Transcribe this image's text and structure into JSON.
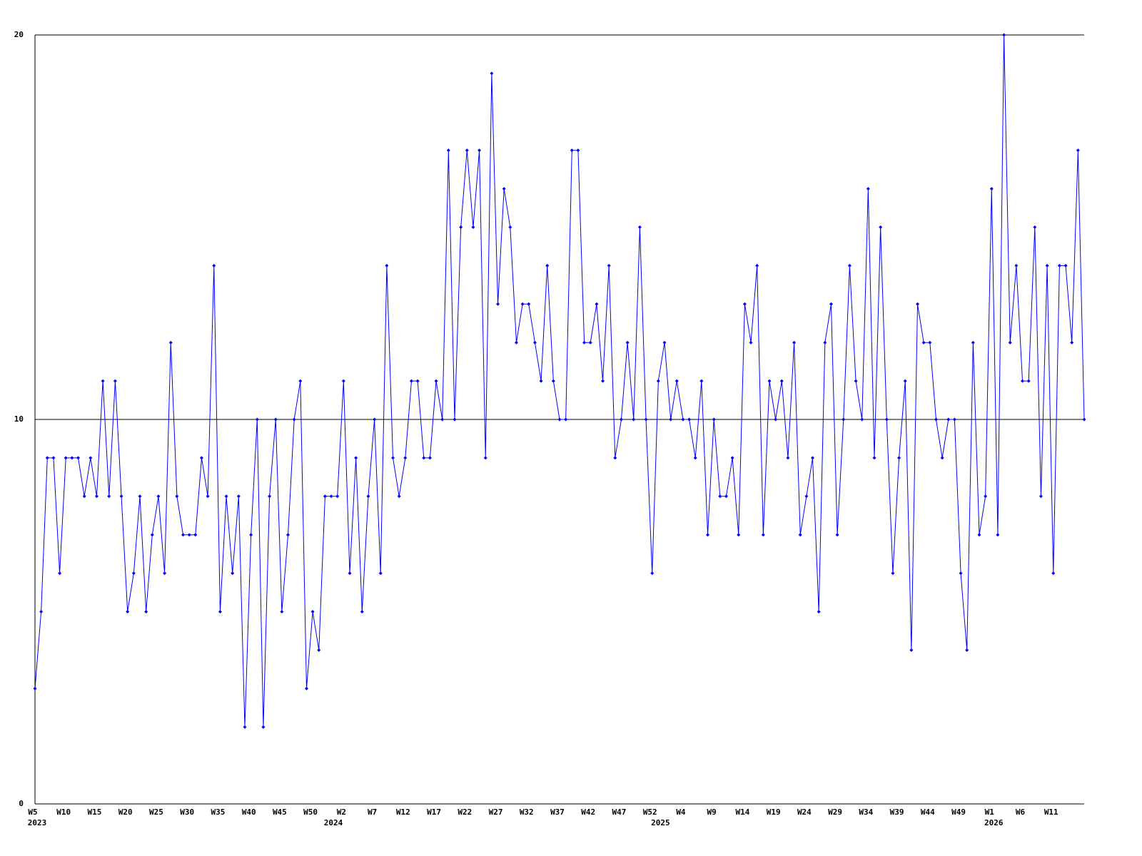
{
  "chart_data": {
    "type": "line",
    "color": "#0000ff",
    "ylim": [
      0,
      20
    ],
    "yticks": [
      0,
      10,
      20
    ],
    "grid": true,
    "categories": [
      "W5",
      null,
      null,
      null,
      null,
      "W10",
      null,
      null,
      null,
      null,
      "W15",
      null,
      null,
      null,
      null,
      "W20",
      null,
      null,
      null,
      null,
      "W25",
      null,
      null,
      null,
      null,
      "W30",
      null,
      null,
      null,
      null,
      "W35",
      null,
      null,
      null,
      null,
      "W40",
      null,
      null,
      null,
      null,
      "W45",
      null,
      null,
      null,
      null,
      "W50",
      null,
      null,
      null,
      null,
      "W2",
      null,
      null,
      null,
      null,
      "W7",
      null,
      null,
      null,
      null,
      "W12",
      null,
      null,
      null,
      null,
      "W17",
      null,
      null,
      null,
      null,
      "W22",
      null,
      null,
      null,
      null,
      "W27",
      null,
      null,
      null,
      null,
      "W32",
      null,
      null,
      null,
      null,
      "W37",
      null,
      null,
      null,
      null,
      "W42",
      null,
      null,
      null,
      null,
      "W47",
      null,
      null,
      null,
      null,
      "W52",
      null,
      null,
      null,
      null,
      "W4",
      null,
      null,
      null,
      null,
      "W9",
      null,
      null,
      null,
      null,
      "W14",
      null,
      null,
      null,
      null,
      "W19",
      null,
      null,
      null,
      null,
      "W24",
      null,
      null,
      null,
      null,
      "W29",
      null,
      null,
      null,
      null,
      "W34",
      null,
      null,
      null,
      null,
      "W39",
      null,
      null,
      null,
      null,
      "W44",
      null,
      null,
      null,
      null,
      "W49",
      null,
      null,
      null,
      null,
      "W1",
      null,
      null,
      null,
      null,
      "W6",
      null,
      null,
      null,
      null,
      "W11",
      null,
      null,
      null,
      null,
      null
    ],
    "category_years": [
      "2023",
      null,
      null,
      null,
      null,
      null,
      null,
      null,
      null,
      null,
      null,
      null,
      null,
      null,
      null,
      null,
      null,
      null,
      null,
      null,
      null,
      null,
      null,
      null,
      null,
      null,
      null,
      null,
      null,
      null,
      null,
      null,
      null,
      null,
      null,
      null,
      null,
      null,
      null,
      null,
      null,
      null,
      null,
      null,
      null,
      null,
      null,
      null,
      "2024",
      null,
      null,
      null,
      null,
      null,
      null,
      null,
      null,
      null,
      null,
      null,
      null,
      null,
      null,
      null,
      null,
      null,
      null,
      null,
      null,
      null,
      null,
      null,
      null,
      null,
      null,
      null,
      null,
      null,
      null,
      null,
      null,
      null,
      null,
      null,
      null,
      null,
      null,
      null,
      null,
      null,
      null,
      null,
      null,
      null,
      null,
      null,
      null,
      null,
      null,
      null,
      null,
      "2025",
      null,
      null,
      null,
      null,
      null,
      null,
      null,
      null,
      null,
      null,
      null,
      null,
      null,
      null,
      null,
      null,
      null,
      null,
      null,
      null,
      null,
      null,
      null,
      null,
      null,
      null,
      null,
      null,
      null,
      null,
      null,
      null,
      null,
      null,
      null,
      null,
      null,
      null,
      null,
      null,
      null,
      null,
      null,
      null,
      null,
      null,
      null,
      null,
      null,
      null,
      null,
      null,
      null,
      "2026",
      null,
      null,
      null,
      null,
      null,
      null,
      null,
      null,
      null,
      null,
      null,
      null,
      null,
      null,
      null,
      null
    ],
    "values": [
      3,
      5,
      9,
      9,
      6,
      9,
      9,
      9,
      8,
      9,
      8,
      11,
      8,
      11,
      8,
      5,
      6,
      8,
      5,
      7,
      8,
      6,
      12,
      8,
      7,
      7,
      7,
      9,
      8,
      14,
      5,
      8,
      6,
      8,
      2,
      7,
      10,
      2,
      8,
      10,
      5,
      7,
      10,
      11,
      3,
      5,
      4,
      8,
      8,
      8,
      11,
      6,
      9,
      5,
      8,
      10,
      6,
      14,
      9,
      8,
      9,
      11,
      11,
      9,
      9,
      11,
      10,
      17,
      10,
      15,
      17,
      15,
      17,
      9,
      19,
      13,
      16,
      15,
      12,
      13,
      13,
      12,
      11,
      14,
      11,
      10,
      10,
      17,
      17,
      12,
      12,
      13,
      11,
      14,
      9,
      10,
      12,
      10,
      15,
      10,
      6,
      11,
      12,
      10,
      11,
      10,
      10,
      9,
      11,
      7,
      10,
      8,
      8,
      9,
      7,
      13,
      12,
      14,
      7,
      11,
      10,
      11,
      9,
      12,
      7,
      8,
      9,
      5,
      12,
      13,
      7,
      10,
      14,
      11,
      10,
      16,
      9,
      15,
      10,
      6,
      9,
      11,
      4,
      13,
      12,
      12,
      10,
      9,
      10,
      10,
      6,
      4,
      12,
      7,
      8,
      16,
      7,
      20,
      12,
      14,
      11,
      11,
      15,
      8,
      14,
      6,
      14,
      14,
      12,
      17,
      10
    ]
  }
}
